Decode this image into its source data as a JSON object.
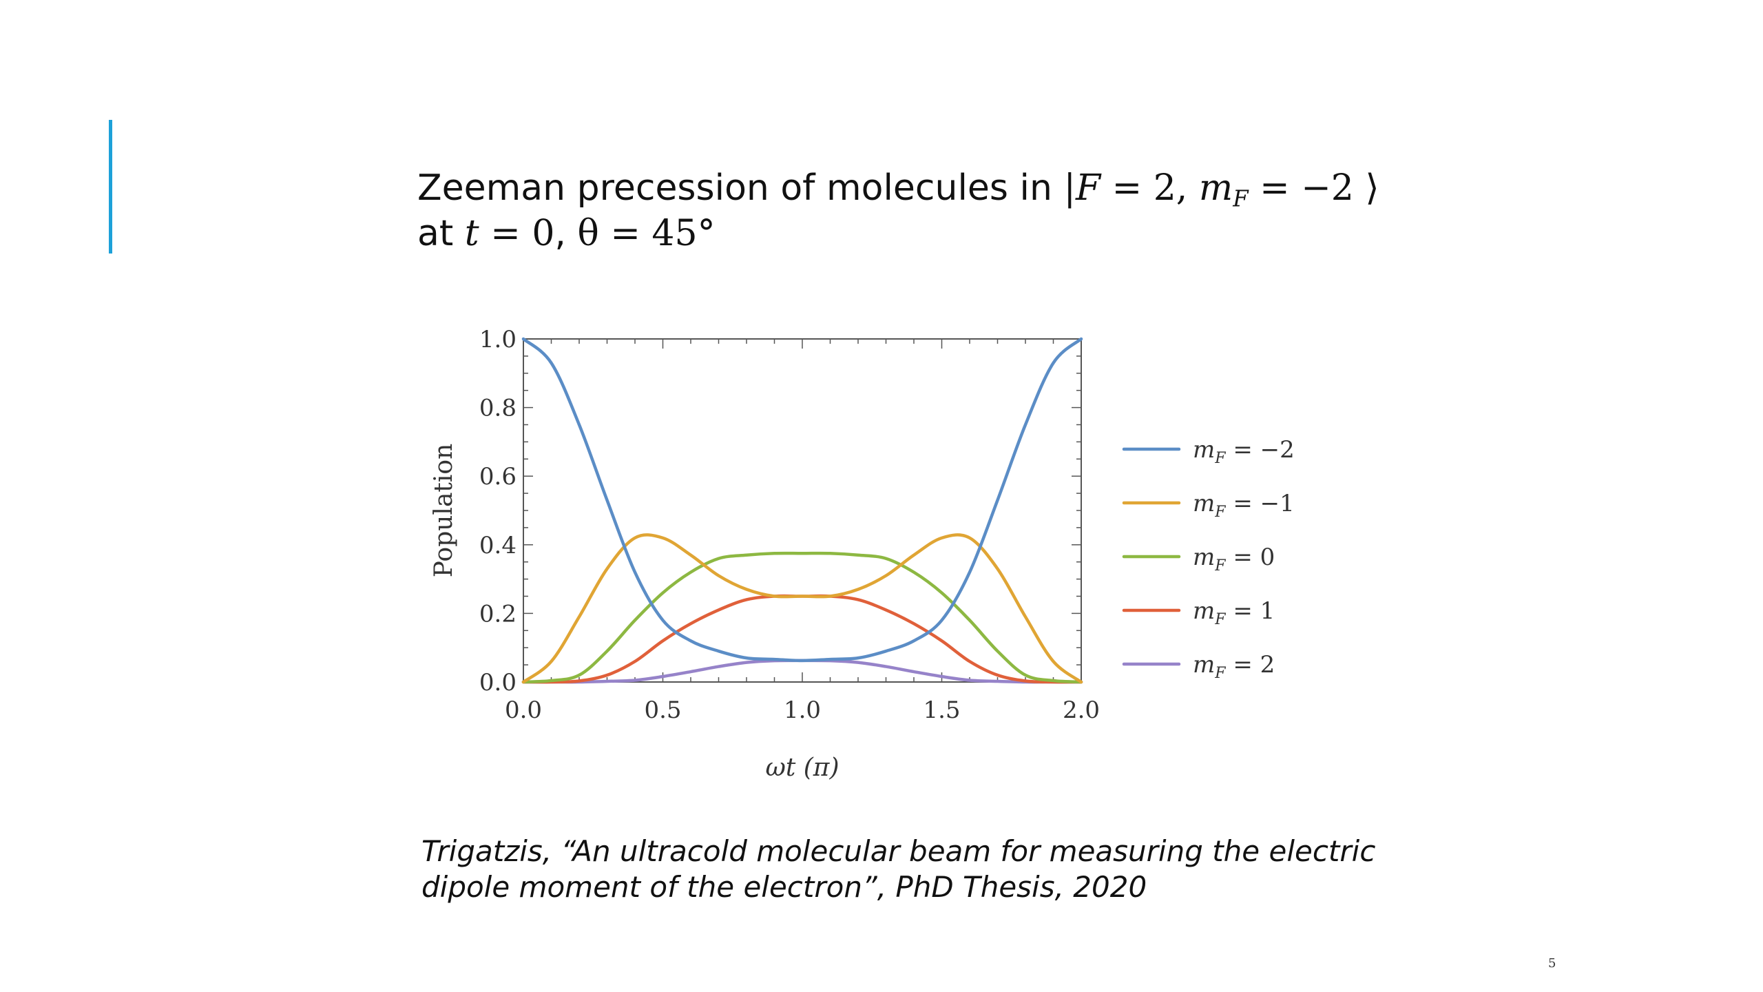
{
  "slide": {
    "title_line1_prefix": "Zeeman precession of molecules in ",
    "title_line1_math": {
      "bar": "|",
      "F": "F",
      "eq1": " = 2, ",
      "m": "m",
      "sub": "F",
      "eq2": " = −2 ⟩"
    },
    "title_line2_prefix": "at ",
    "title_line2_math": {
      "t": "t",
      "eq": " = 0",
      "comma": ", ",
      "theta": "θ = 45°"
    },
    "citation_line1": "Trigatzis, “An ultracold molecular beam for measuring the electric",
    "citation_line2": "dipole moment of the electron”, PhD Thesis, 2020",
    "slide_number": "5",
    "accent_color": "#1da1d9"
  },
  "chart_data": {
    "type": "line",
    "xlabel": "ωt (π)",
    "ylabel": "Population",
    "xlim": [
      0,
      2
    ],
    "ylim": [
      0,
      1
    ],
    "xticks": [
      "0.0",
      "0.5",
      "1.0",
      "1.5",
      "2.0"
    ],
    "yticks": [
      "0.0",
      "0.2",
      "0.4",
      "0.6",
      "0.8",
      "1.0"
    ],
    "legend_position": "right",
    "x": [
      0.0,
      0.1,
      0.2,
      0.3,
      0.4,
      0.5,
      0.6,
      0.7,
      0.8,
      0.9,
      1.0,
      1.1,
      1.2,
      1.3,
      1.4,
      1.5,
      1.6,
      1.7,
      1.8,
      1.9,
      2.0
    ],
    "series": [
      {
        "name": "m_F = −2",
        "color": "#5b8dc6",
        "values": [
          1.0,
          0.93,
          0.75,
          0.53,
          0.32,
          0.18,
          0.12,
          0.09,
          0.07,
          0.066,
          0.0625,
          0.066,
          0.07,
          0.09,
          0.12,
          0.18,
          0.32,
          0.53,
          0.75,
          0.93,
          1.0
        ]
      },
      {
        "name": "m_F = −1",
        "color": "#e0a534",
        "values": [
          0.0,
          0.06,
          0.19,
          0.33,
          0.42,
          0.42,
          0.37,
          0.31,
          0.27,
          0.25,
          0.25,
          0.25,
          0.27,
          0.31,
          0.37,
          0.42,
          0.42,
          0.33,
          0.19,
          0.06,
          0.0
        ]
      },
      {
        "name": "m_F = 0",
        "color": "#8db842",
        "values": [
          0.0,
          0.004,
          0.02,
          0.09,
          0.18,
          0.26,
          0.32,
          0.36,
          0.37,
          0.375,
          0.375,
          0.375,
          0.37,
          0.36,
          0.32,
          0.26,
          0.18,
          0.09,
          0.02,
          0.004,
          0.0
        ]
      },
      {
        "name": "m_F = 1",
        "color": "#e0603a",
        "values": [
          0.0,
          0.0,
          0.003,
          0.02,
          0.06,
          0.12,
          0.17,
          0.21,
          0.24,
          0.25,
          0.25,
          0.25,
          0.24,
          0.21,
          0.17,
          0.12,
          0.06,
          0.02,
          0.003,
          0.0,
          0.0
        ]
      },
      {
        "name": "m_F = 2",
        "color": "#9683c9",
        "values": [
          0.0,
          0.0,
          0.0,
          0.002,
          0.005,
          0.016,
          0.03,
          0.045,
          0.057,
          0.062,
          0.0625,
          0.062,
          0.057,
          0.045,
          0.03,
          0.016,
          0.005,
          0.002,
          0.0,
          0.0,
          0.0
        ]
      }
    ]
  }
}
